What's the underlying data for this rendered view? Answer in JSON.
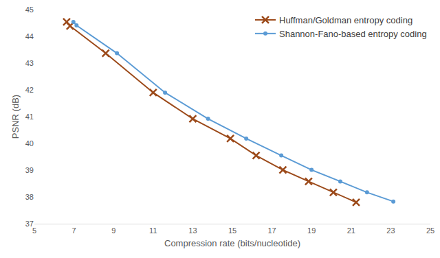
{
  "chart_data": {
    "type": "line",
    "x_label": "Compression rate (bits/nucleotide)",
    "y_label": "PSNR (dB)",
    "xlim": [
      5,
      25
    ],
    "xticks": [
      5,
      7,
      9,
      11,
      13,
      15,
      17,
      19,
      21,
      23,
      25
    ],
    "ylim": [
      37,
      45
    ],
    "yticks": [
      37,
      38,
      39,
      40,
      41,
      42,
      43,
      44,
      45
    ],
    "grid": false,
    "legend": "upper right",
    "series": [
      {
        "name": "Huffman/Goldman entropy coding",
        "color": "#9c4a1a",
        "marker": "x",
        "line_style": "solid",
        "x": [
          6.63,
          6.8,
          8.6,
          11.0,
          13.0,
          14.9,
          16.2,
          17.55,
          18.85,
          20.1,
          21.25
        ],
        "values": [
          44.54,
          44.39,
          43.37,
          41.9,
          40.92,
          40.18,
          39.55,
          39.01,
          38.58,
          38.17,
          37.8
        ]
      },
      {
        "name": "Shannon-Fano-based entropy coding",
        "color": "#5b9bd5",
        "marker": "circle",
        "line_style": "solid",
        "x": [
          6.97,
          7.13,
          9.17,
          11.6,
          13.77,
          15.7,
          17.47,
          19.0,
          20.45,
          21.8,
          23.13
        ],
        "values": [
          44.54,
          44.41,
          43.37,
          41.9,
          40.92,
          40.18,
          39.55,
          39.01,
          38.58,
          38.17,
          37.83
        ]
      }
    ]
  }
}
